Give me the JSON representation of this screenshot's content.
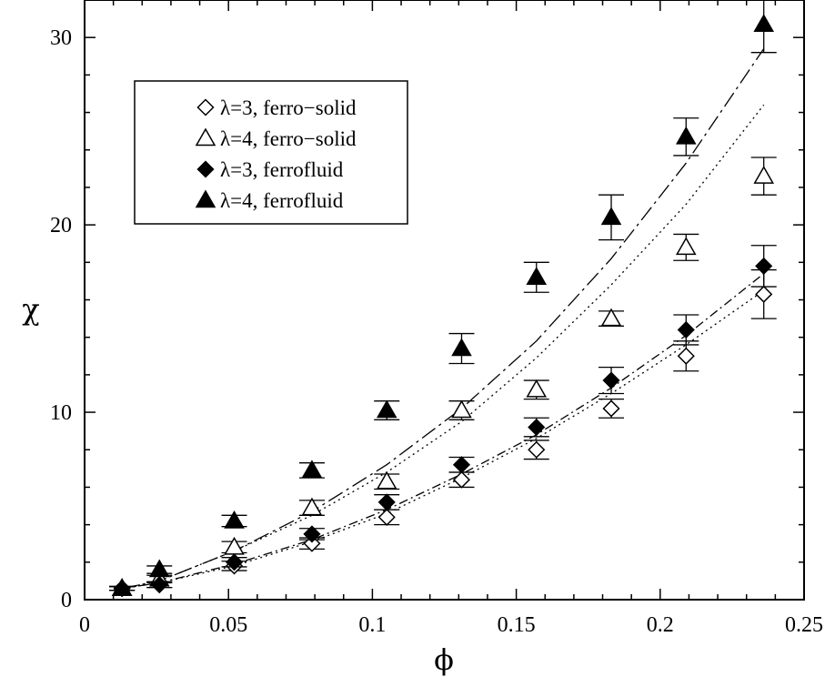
{
  "chart_data": {
    "type": "scatter",
    "title": "",
    "xlabel": "ϕ",
    "ylabel": "χ",
    "xlim": [
      0,
      0.25
    ],
    "ylim": [
      0,
      32
    ],
    "x_ticks": [
      0,
      0.05,
      0.1,
      0.15,
      0.2,
      0.25
    ],
    "x_tick_labels": [
      "0",
      "0.05",
      "0.1",
      "0.15",
      "0.2",
      "0.25"
    ],
    "y_ticks": [
      0,
      10,
      20,
      30
    ],
    "y_tick_labels": [
      "0",
      "10",
      "20",
      "30"
    ],
    "grid": false,
    "legend_position": "top-left",
    "series": [
      {
        "name": "λ=3, ferro−solid",
        "marker": "diamond-open",
        "x": [
          0.013,
          0.026,
          0.052,
          0.079,
          0.105,
          0.131,
          0.157,
          0.183,
          0.209,
          0.236
        ],
        "y": [
          0.6,
          0.8,
          1.8,
          3.0,
          4.4,
          6.4,
          8.0,
          10.2,
          13.0,
          16.3
        ],
        "err": [
          0.1,
          0.15,
          0.25,
          0.3,
          0.4,
          0.4,
          0.5,
          0.5,
          0.8,
          1.3
        ]
      },
      {
        "name": "λ=4, ferro−solid",
        "marker": "triangle-open",
        "x": [
          0.013,
          0.026,
          0.052,
          0.079,
          0.105,
          0.131,
          0.157,
          0.183,
          0.209,
          0.236
        ],
        "y": [
          0.6,
          1.1,
          2.8,
          4.9,
          6.3,
          10.1,
          11.2,
          15.0,
          18.8,
          22.6
        ],
        "err": [
          0.1,
          0.2,
          0.3,
          0.4,
          0.4,
          0.5,
          0.5,
          0.4,
          0.7,
          1.0
        ]
      },
      {
        "name": "λ=3, ferrofluid",
        "marker": "diamond-filled",
        "x": [
          0.013,
          0.026,
          0.052,
          0.079,
          0.105,
          0.131,
          0.157,
          0.183,
          0.209,
          0.236
        ],
        "y": [
          0.6,
          0.8,
          2.0,
          3.5,
          5.2,
          7.2,
          9.2,
          11.7,
          14.4,
          17.8
        ],
        "err": [
          0.1,
          0.15,
          0.25,
          0.3,
          0.4,
          0.4,
          0.5,
          0.7,
          0.8,
          1.1
        ]
      },
      {
        "name": "λ=4, ferrofluid",
        "marker": "triangle-filled",
        "x": [
          0.013,
          0.026,
          0.052,
          0.079,
          0.105,
          0.131,
          0.157,
          0.183,
          0.209,
          0.236
        ],
        "y": [
          0.6,
          1.6,
          4.2,
          6.9,
          10.1,
          13.4,
          17.2,
          20.4,
          24.7,
          30.7
        ],
        "err": [
          0.1,
          0.2,
          0.3,
          0.4,
          0.5,
          0.8,
          0.8,
          1.2,
          1.0,
          1.5
        ]
      }
    ],
    "fit_curves": [
      {
        "style": "dotted",
        "x": [
          0.013,
          0.026,
          0.052,
          0.079,
          0.105,
          0.131,
          0.157,
          0.183,
          0.209,
          0.236
        ],
        "y": [
          0.6,
          0.9,
          1.8,
          3.1,
          4.6,
          6.5,
          8.6,
          11.0,
          13.6,
          16.5
        ]
      },
      {
        "style": "dash-dot",
        "x": [
          0.013,
          0.026,
          0.052,
          0.079,
          0.105,
          0.131,
          0.157,
          0.183,
          0.209,
          0.236
        ],
        "y": [
          0.6,
          0.9,
          1.9,
          3.2,
          4.8,
          6.7,
          8.8,
          11.3,
          14.1,
          17.4
        ]
      },
      {
        "style": "dotted",
        "x": [
          0.013,
          0.026,
          0.052,
          0.079,
          0.105,
          0.131,
          0.157,
          0.183,
          0.209,
          0.236
        ],
        "y": [
          0.6,
          1.0,
          2.6,
          4.5,
          6.8,
          9.5,
          12.9,
          16.8,
          21.1,
          26.4
        ]
      },
      {
        "style": "long-dash-dot",
        "x": [
          0.013,
          0.026,
          0.052,
          0.079,
          0.105,
          0.131,
          0.157,
          0.183,
          0.209,
          0.236
        ],
        "y": [
          0.6,
          1.0,
          2.6,
          4.7,
          7.2,
          10.2,
          13.8,
          18.2,
          23.3,
          29.4
        ]
      }
    ]
  }
}
